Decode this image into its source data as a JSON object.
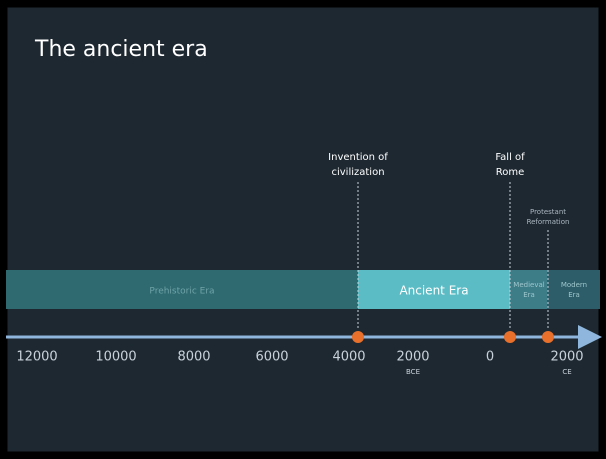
{
  "title": "The ancient era",
  "annotations": [
    {
      "lines": [
        "Invention of",
        "civilization"
      ]
    },
    {
      "lines": [
        "Fall of",
        "Rome"
      ]
    },
    {
      "lines": [
        "Protestant",
        "Reformation"
      ]
    }
  ],
  "eras": [
    {
      "lines": [
        "Prehistoric Era"
      ]
    },
    {
      "lines": [
        "Ancient Era"
      ]
    },
    {
      "lines": [
        "Medieval",
        "Era"
      ]
    },
    {
      "lines": [
        "Modern",
        "Era"
      ]
    }
  ],
  "axis": {
    "ticks": [
      "12000",
      "10000",
      "8000",
      "6000",
      "4000",
      "2000",
      "0",
      "2000"
    ],
    "bce": "BCE",
    "ce": "CE"
  }
}
